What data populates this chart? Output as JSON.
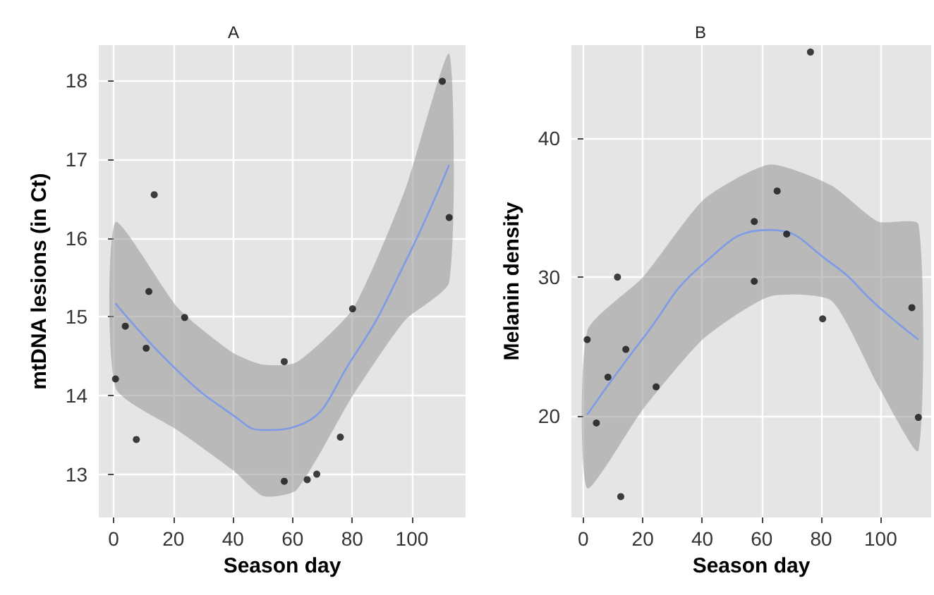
{
  "chart_data": [
    {
      "type": "scatter",
      "title": "A",
      "xlabel": "Season day",
      "ylabel": "mtDNA lesions (in Ct)",
      "xlim": [
        -5,
        118
      ],
      "ylim": [
        12.45,
        18.45
      ],
      "xticks": [
        0,
        20,
        40,
        60,
        80,
        100
      ],
      "yticks": [
        13,
        14,
        15,
        16,
        17,
        18
      ],
      "grid": true,
      "series": [
        {
          "marker": "circle",
          "color": "#111111",
          "x": [
            0.6,
            3.9,
            7.6,
            10.9,
            11.8,
            13.6,
            23.8,
            57.2,
            57.2,
            64.9,
            68.1,
            76,
            80.1,
            110.2,
            112.5
          ],
          "values": [
            14.21,
            14.88,
            13.44,
            14.6,
            15.32,
            16.55,
            14.99,
            14.43,
            12.91,
            12.93,
            13.0,
            13.47,
            15.1,
            17.99,
            16.26
          ]
        },
        {
          "type": "line",
          "marker": "none",
          "color": "#7f9be6",
          "x": [
            0.6,
            21.8,
            40,
            50.2,
            61.3,
            80.2,
            97.6,
            112.5
          ],
          "values": [
            15.17,
            14.3,
            13.75,
            13.56,
            13.61,
            14.48,
            15.68,
            16.93
          ],
          "lower": [
            14.1,
            13.55,
            13.05,
            12.72,
            12.8,
            14.0,
            14.95,
            15.44
          ],
          "upper": [
            16.2,
            15.1,
            14.54,
            14.39,
            14.42,
            15.1,
            16.6,
            18.34
          ]
        }
      ]
    },
    {
      "type": "scatter",
      "title": "B",
      "xlabel": "Season day",
      "ylabel": "Melanin density",
      "xlim": [
        -4,
        117
      ],
      "ylim": [
        12.7,
        46.7
      ],
      "xticks": [
        0,
        20,
        40,
        60,
        80,
        100
      ],
      "yticks": [
        20,
        30,
        40
      ],
      "grid": true,
      "series": [
        {
          "marker": "circle",
          "color": "#111111",
          "x": [
            1.3,
            4.4,
            8.3,
            11.5,
            12.6,
            14.3,
            24.5,
            57.5,
            57.5,
            65.2,
            68.4,
            76.4,
            80.5,
            110.5,
            112.7
          ],
          "values": [
            25.5,
            19.5,
            22.8,
            30,
            14.2,
            24.8,
            22.1,
            34,
            29.7,
            36.2,
            33.1,
            46.2,
            27,
            27.8,
            19.9
          ]
        },
        {
          "type": "line",
          "marker": "none",
          "color": "#7f9be6",
          "x": [
            1.3,
            20.1,
            40.6,
            62.6,
            83.4,
            99.1,
            112.7
          ],
          "values": [
            20.1,
            25.6,
            31,
            33.4,
            31,
            27.9,
            25.5
          ],
          "lower": [
            14.8,
            20.5,
            25.6,
            28.6,
            28.3,
            22.2,
            17.5
          ],
          "upper": [
            26.1,
            30,
            35.6,
            38.1,
            36.6,
            34,
            33.8
          ]
        }
      ]
    }
  ]
}
